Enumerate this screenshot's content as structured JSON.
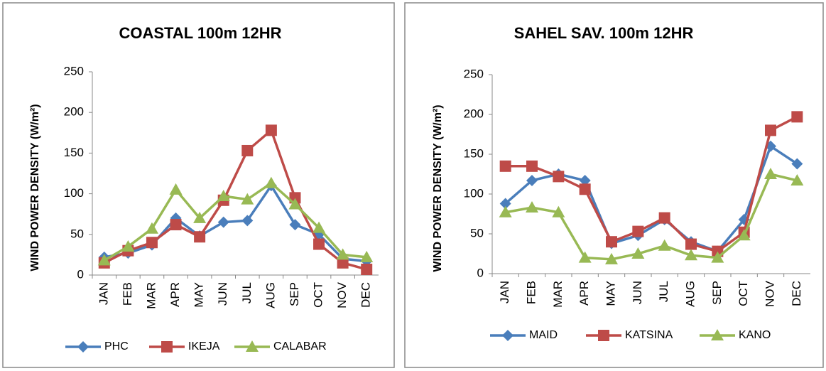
{
  "chart_data": [
    {
      "type": "line",
      "title": "COASTAL 100m 12HR",
      "y_label": "WIND POWER DENSITY (W/m²)",
      "categories": [
        "JAN",
        "FEB",
        "MAR",
        "APR",
        "MAY",
        "JUN",
        "JUL",
        "AUG",
        "SEP",
        "OCT",
        "NOV",
        "DEC"
      ],
      "series": [
        {
          "name": "PHC",
          "color": "#4a7ebb",
          "marker": "diamond",
          "values": [
            22,
            27,
            37,
            70,
            48,
            65,
            67,
            110,
            62,
            50,
            20,
            17
          ]
        },
        {
          "name": "IKEJA",
          "color": "#be4b48",
          "marker": "square",
          "values": [
            15,
            30,
            40,
            62,
            47,
            92,
            153,
            178,
            95,
            38,
            15,
            7
          ]
        },
        {
          "name": "CALABAR",
          "color": "#98b954",
          "marker": "triangle",
          "values": [
            18,
            35,
            57,
            105,
            70,
            97,
            93,
            113,
            87,
            58,
            25,
            22
          ]
        }
      ],
      "ylim": [
        0,
        250
      ],
      "yticks": [
        0,
        50,
        100,
        150,
        200,
        250
      ],
      "legend": "bottom"
    },
    {
      "type": "line",
      "title": "SAHEL SAV. 100m 12HR",
      "y_label": "WIND POWER DENSITY (W/m²)",
      "categories": [
        "JAN",
        "FEB",
        "MAR",
        "APR",
        "MAY",
        "JUN",
        "JUL",
        "AUG",
        "SEP",
        "OCT",
        "NOV",
        "DEC"
      ],
      "series": [
        {
          "name": "MAID",
          "color": "#4a7ebb",
          "marker": "diamond",
          "values": [
            88,
            117,
            125,
            117,
            38,
            48,
            68,
            40,
            28,
            68,
            160,
            138
          ]
        },
        {
          "name": "KATSINA",
          "color": "#be4b48",
          "marker": "square",
          "values": [
            135,
            135,
            122,
            106,
            40,
            53,
            70,
            37,
            28,
            52,
            180,
            197
          ]
        },
        {
          "name": "KANO",
          "color": "#98b954",
          "marker": "triangle",
          "values": [
            77,
            83,
            77,
            20,
            18,
            25,
            35,
            23,
            20,
            48,
            125,
            117
          ]
        }
      ],
      "ylim": [
        0,
        250
      ],
      "yticks": [
        0,
        50,
        100,
        150,
        200,
        250
      ],
      "legend": "bottom"
    }
  ]
}
